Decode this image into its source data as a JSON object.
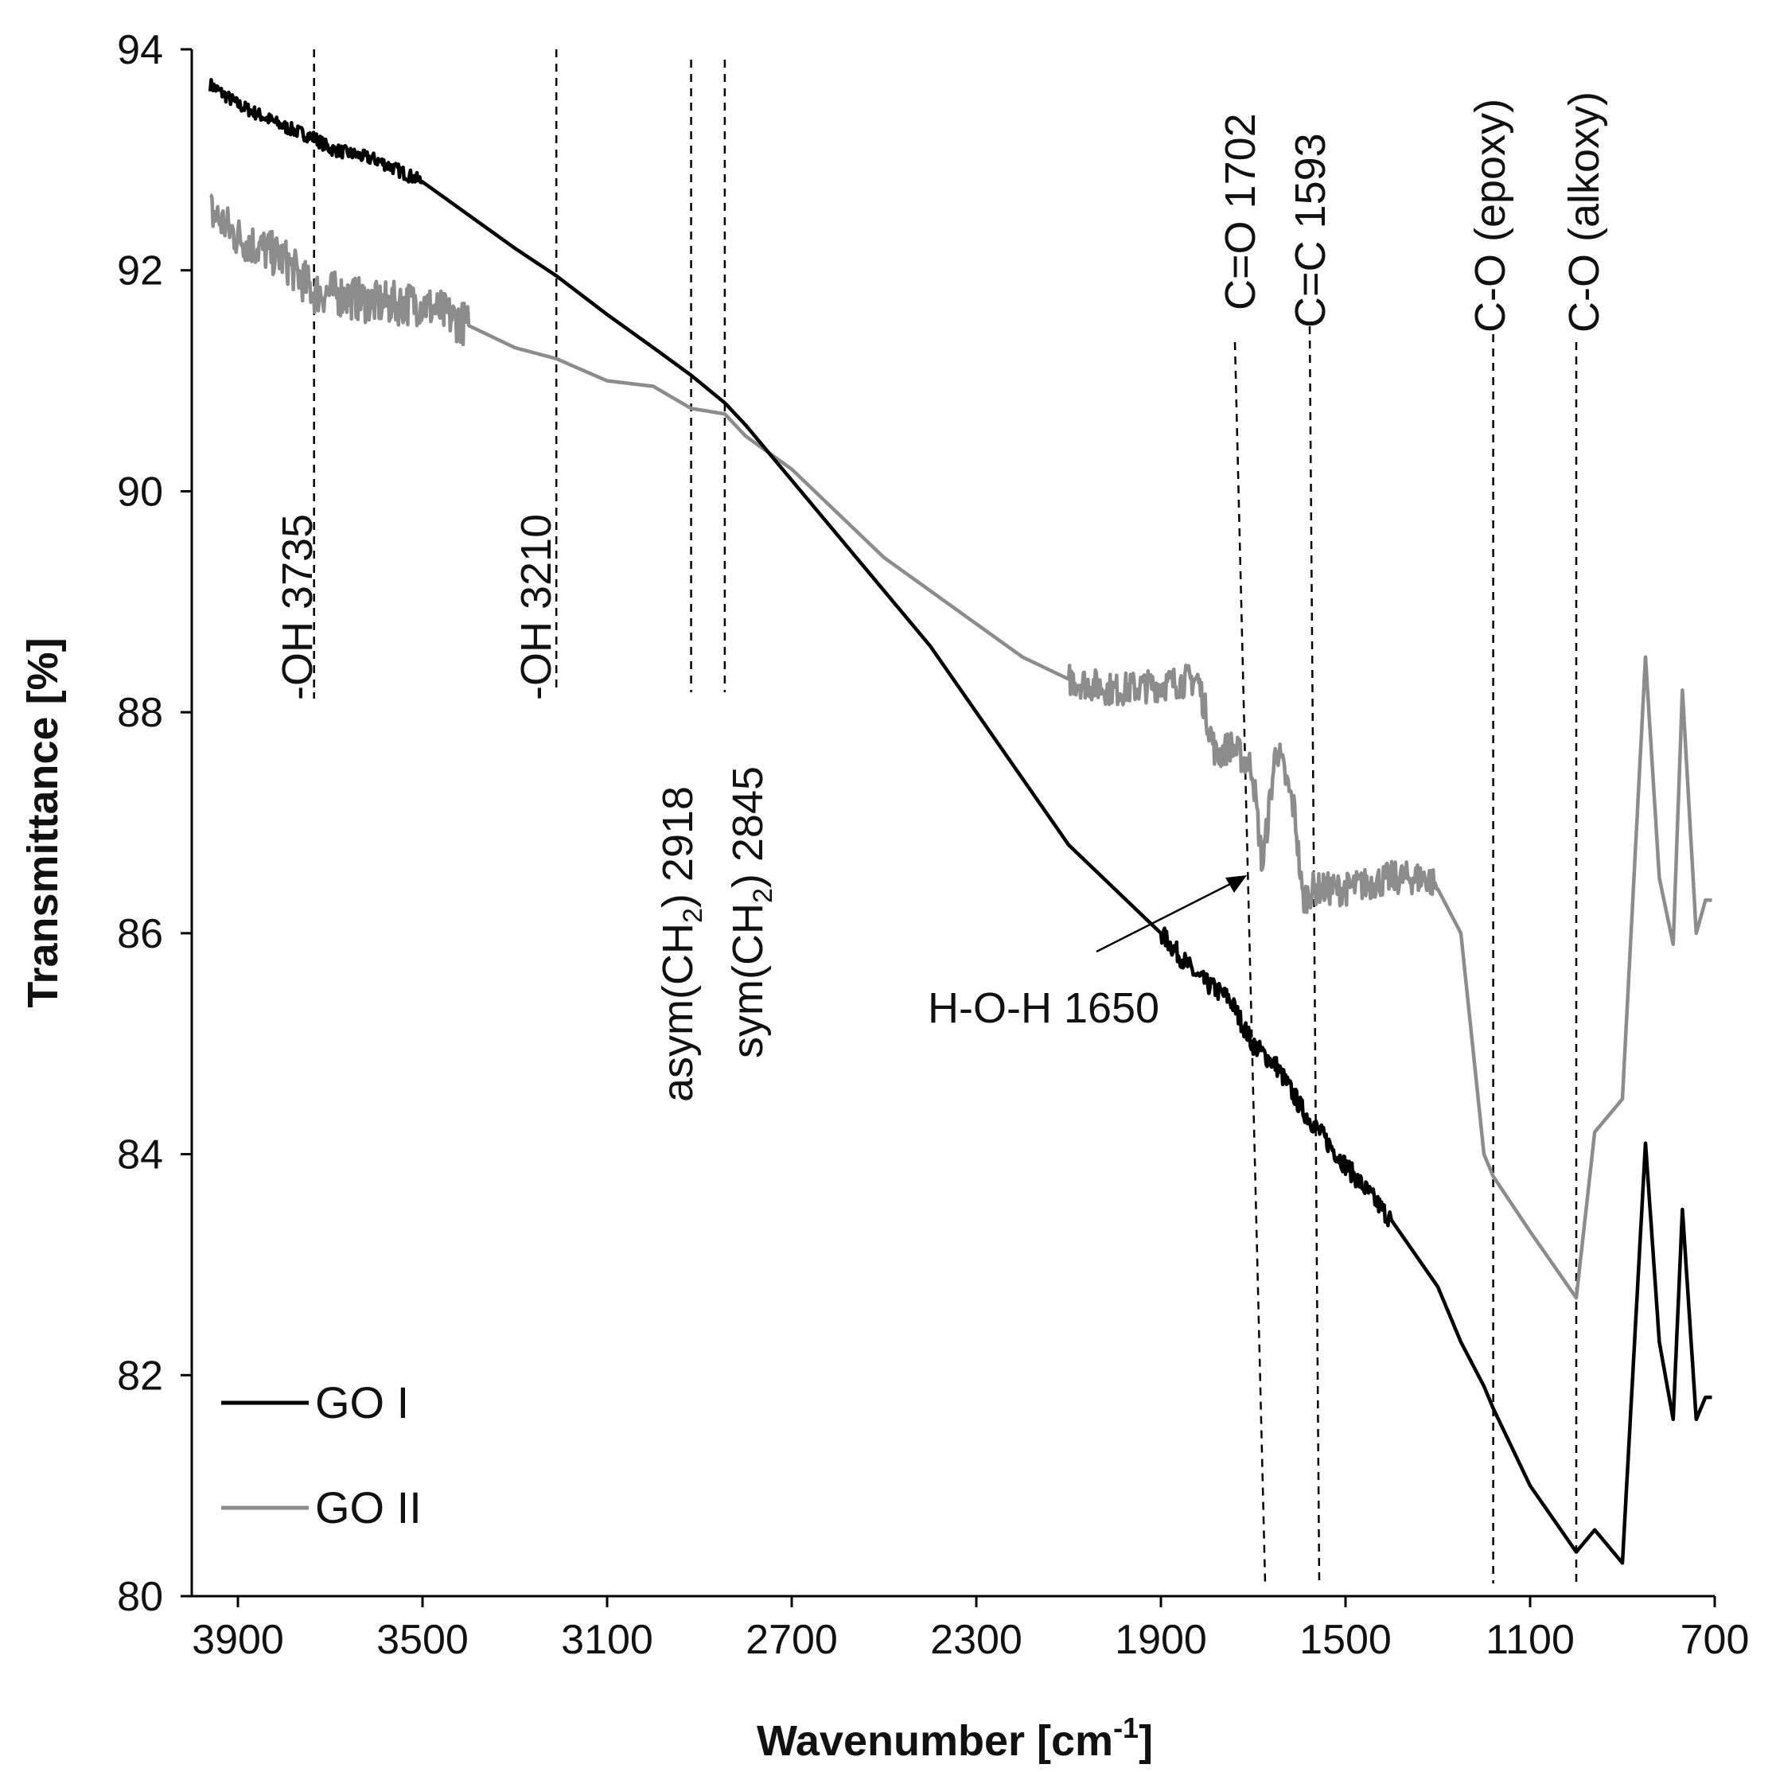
{
  "chart_data": {
    "type": "line",
    "title": "",
    "xlabel": "Wavenumber [cm",
    "xlabel_sup": "-1",
    "xlabel_end": "]",
    "ylabel": "Transmittance [%]",
    "xlim": [
      4000,
      700
    ],
    "ylim": [
      80,
      94
    ],
    "x_ticks": [
      "3900",
      "3500",
      "3100",
      "2700",
      "2300",
      "1900",
      "1500",
      "1100",
      "700"
    ],
    "y_ticks": [
      "80",
      "82",
      "84",
      "86",
      "88",
      "90",
      "92",
      "94"
    ],
    "legend_position": "bottom-left",
    "series": [
      {
        "name": "GO I",
        "color": "#000000",
        "x": [
          4000,
          3900,
          3800,
          3735,
          3700,
          3600,
          3500,
          3400,
          3300,
          3210,
          3100,
          3000,
          2918,
          2845,
          2800,
          2700,
          2600,
          2500,
          2400,
          2300,
          2200,
          2100,
          2000,
          1900,
          1820,
          1750,
          1702,
          1650,
          1593,
          1500,
          1400,
          1300,
          1250,
          1200,
          1180,
          1100,
          1000,
          960,
          900,
          850,
          820,
          790,
          770,
          740,
          720,
          700
        ],
        "values": [
          93.8,
          93.5,
          93.3,
          93.2,
          93.1,
          93.0,
          92.8,
          92.5,
          92.2,
          91.95,
          91.6,
          91.3,
          91.05,
          90.8,
          90.6,
          90.1,
          89.6,
          89.1,
          88.6,
          88.0,
          87.4,
          86.8,
          86.4,
          86.0,
          85.6,
          85.4,
          85.0,
          84.8,
          84.4,
          83.9,
          83.4,
          82.8,
          82.3,
          81.9,
          81.7,
          81.0,
          80.4,
          80.6,
          80.3,
          84.1,
          82.3,
          81.6,
          83.5,
          81.6,
          81.8,
          81.8
        ]
      },
      {
        "name": "GO II",
        "color": "#8c8c8c",
        "x": [
          4000,
          3900,
          3800,
          3735,
          3700,
          3600,
          3500,
          3400,
          3300,
          3210,
          3100,
          3000,
          2918,
          2845,
          2800,
          2700,
          2600,
          2500,
          2400,
          2300,
          2200,
          2100,
          2000,
          1900,
          1820,
          1780,
          1750,
          1702,
          1680,
          1650,
          1610,
          1593,
          1570,
          1500,
          1400,
          1320,
          1300,
          1250,
          1200,
          1180,
          1100,
          1000,
          960,
          900,
          850,
          820,
          790,
          770,
          740,
          720,
          700
        ],
        "values": [
          92.7,
          92.3,
          92.1,
          91.8,
          91.8,
          91.7,
          91.7,
          91.5,
          91.3,
          91.2,
          91.0,
          90.95,
          90.75,
          90.7,
          90.5,
          90.2,
          89.8,
          89.4,
          89.1,
          88.8,
          88.5,
          88.3,
          88.2,
          88.25,
          88.3,
          87.6,
          87.7,
          87.5,
          86.6,
          87.7,
          87.1,
          86.3,
          86.4,
          86.4,
          86.5,
          86.5,
          86.4,
          86.0,
          84.0,
          83.8,
          83.3,
          82.7,
          84.2,
          84.5,
          88.5,
          86.5,
          85.9,
          88.2,
          86.0,
          86.3,
          86.3
        ]
      }
    ],
    "annotations": [
      {
        "label": "-OH 3735",
        "x": 3735
      },
      {
        "label": "-OH 3210",
        "x": 3210
      },
      {
        "label_main": "asym(CH",
        "label_sub": "2",
        "label_end": ") 2918",
        "x": 2918
      },
      {
        "label_main": "sym(CH",
        "label_sub": "2",
        "label_end": ") 2845",
        "x": 2845
      },
      {
        "label": "C=O 1702",
        "x": 1702
      },
      {
        "label": "C=C 1593",
        "x": 1593
      },
      {
        "label": "C-O (epoxy)",
        "x": 1180
      },
      {
        "label": "C-O (alkoxy)",
        "x": 1000
      },
      {
        "label": "H-O-H 1650",
        "x": 1650
      }
    ]
  }
}
